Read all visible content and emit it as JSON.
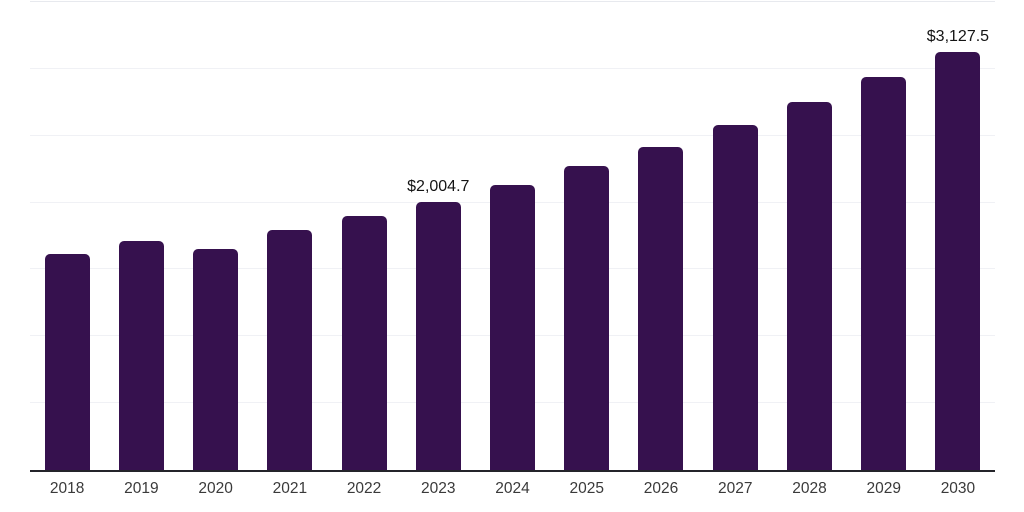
{
  "chart_data": {
    "type": "bar",
    "title": "",
    "xlabel": "",
    "ylabel": "",
    "categories": [
      "2018",
      "2019",
      "2020",
      "2021",
      "2022",
      "2023",
      "2024",
      "2025",
      "2026",
      "2027",
      "2028",
      "2029",
      "2030"
    ],
    "values": [
      1615,
      1713,
      1653,
      1795,
      1900,
      2004.7,
      2132,
      2274,
      2416,
      2580,
      2752,
      2939,
      3127.5
    ],
    "labeled_points": [
      {
        "category": "2023",
        "label": "$2,004.7"
      },
      {
        "category": "2030",
        "label": "$3,127.5"
      }
    ],
    "ylim": [
      0,
      3500
    ],
    "gridline_step": 500,
    "grid": "horizontal-only",
    "legend": "none",
    "y_tick_labels_visible": false,
    "bar_color": "#36114E",
    "axis_line_color": "#24242a",
    "gridline_color": "#f0f1f5",
    "value_label_color": "#141414",
    "tick_label_color": "#3a3a3a",
    "background_color": "#ffffff"
  }
}
